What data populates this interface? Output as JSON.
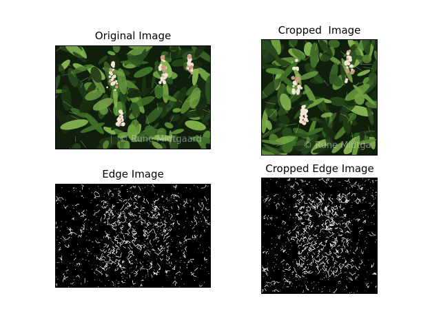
{
  "figure": {
    "panels": [
      {
        "title": "Original Image",
        "image": "photo of horse-chestnut leaves with white flower clusters",
        "watermark": "© Rune Midtgaard"
      },
      {
        "title": "Cropped  Image",
        "image": "cropped photo of horse-chestnut leaves with white flower clusters",
        "watermark": "© Rune Midtga"
      },
      {
        "title": "Edge Image",
        "image": "white-on-black edge detection of the original photo"
      },
      {
        "title": "Cropped Edge Image",
        "image": "white-on-black edge detection of the cropped photo"
      }
    ]
  },
  "colors": {
    "background": "#ffffff",
    "photo_foliage_dark": "#1f3a16",
    "photo_foliage_light": "#6fa142",
    "flower": "#f1e6d6",
    "edge_background": "#000000",
    "edge_lines": "#ffffff"
  }
}
